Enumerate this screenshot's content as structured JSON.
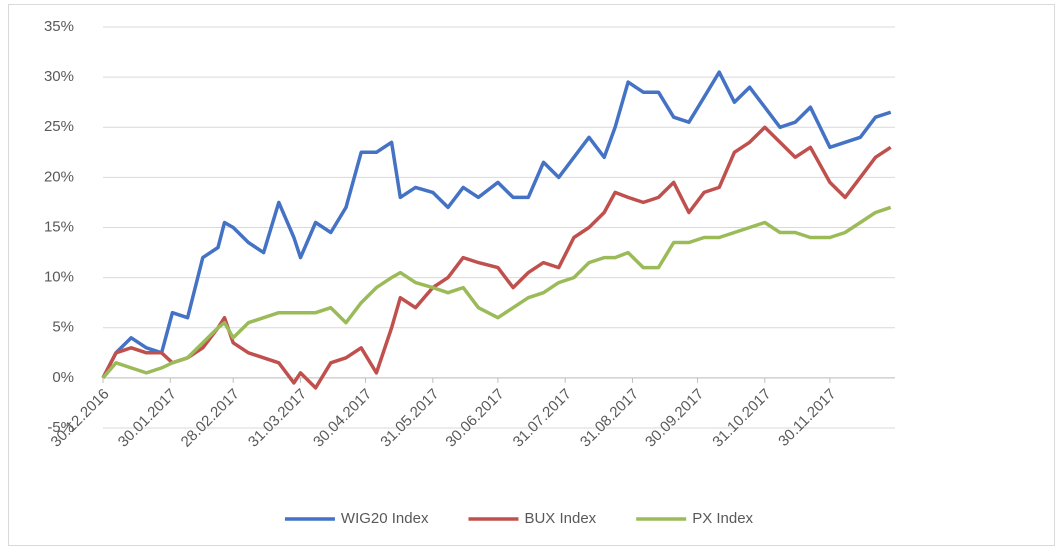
{
  "chart_data": {
    "type": "line",
    "x": [
      "30.12.2016",
      "05.01.2017",
      "12.01.2017",
      "19.01.2017",
      "26.01.2017",
      "31.01.2017",
      "07.02.2017",
      "14.02.2017",
      "21.02.2017",
      "24.02.2017",
      "28.02.2017",
      "07.03.2017",
      "14.03.2017",
      "21.03.2017",
      "28.03.2017",
      "31.03.2017",
      "07.04.2017",
      "14.04.2017",
      "21.04.2017",
      "28.04.2017",
      "05.05.2017",
      "12.05.2017",
      "16.05.2017",
      "23.05.2017",
      "31.05.2017",
      "07.06.2017",
      "14.06.2017",
      "21.06.2017",
      "30.06.2017",
      "07.07.2017",
      "14.07.2017",
      "21.07.2017",
      "28.07.2017",
      "04.08.2017",
      "11.08.2017",
      "18.08.2017",
      "23.08.2017",
      "29.08.2017",
      "05.09.2017",
      "12.09.2017",
      "19.09.2017",
      "26.09.2017",
      "03.10.2017",
      "10.10.2017",
      "17.10.2017",
      "24.10.2017",
      "31.10.2017",
      "07.11.2017",
      "14.11.2017",
      "21.11.2017",
      "30.11.2017",
      "07.12.2017",
      "14.12.2017",
      "21.12.2017",
      "28.12.2017"
    ],
    "series": [
      {
        "name": "WIG20 Index",
        "color": "#4472c4",
        "values": [
          0,
          2.5,
          4,
          3,
          2.5,
          6.5,
          6,
          12,
          13,
          15.5,
          15,
          13.5,
          12.5,
          17.5,
          14,
          12,
          15.5,
          14.5,
          17,
          22.5,
          22.5,
          23.5,
          18,
          19,
          18.5,
          17,
          19,
          18,
          19.5,
          18,
          18,
          21.5,
          20,
          22,
          24,
          22,
          25,
          29.5,
          28.5,
          28.5,
          26,
          25.5,
          28,
          30.5,
          27.5,
          29,
          27,
          25,
          25.5,
          27,
          23,
          23.5,
          24,
          26,
          26.5
        ]
      },
      {
        "name": "BUX Index",
        "color": "#c0504d",
        "values": [
          0,
          2.5,
          3,
          2.5,
          2.5,
          1.5,
          2,
          3,
          5,
          6,
          3.5,
          2.5,
          2,
          1.5,
          -0.5,
          0.5,
          -1,
          1.5,
          2,
          3,
          0.5,
          5,
          8,
          7,
          9,
          10,
          12,
          11.5,
          11,
          9,
          10.5,
          11.5,
          11,
          14,
          15,
          16.5,
          18.5,
          18,
          17.5,
          18,
          19.5,
          16.5,
          18.5,
          19,
          22.5,
          23.5,
          25,
          23.5,
          22,
          23,
          19.5,
          18,
          20,
          22,
          23
        ]
      },
      {
        "name": "PX Index",
        "color": "#9bbb59",
        "values": [
          0,
          1.5,
          1,
          0.5,
          1,
          1.5,
          2,
          3.5,
          5,
          5.5,
          4,
          5.5,
          6,
          6.5,
          6.5,
          6.5,
          6.5,
          7,
          5.5,
          7.5,
          9,
          10,
          10.5,
          9.5,
          9,
          8.5,
          9,
          7,
          6,
          7,
          8,
          8.5,
          9.5,
          10,
          11.5,
          12,
          12,
          12.5,
          11,
          11,
          13.5,
          13.5,
          14,
          14,
          14.5,
          15,
          15.5,
          14.5,
          14.5,
          14,
          14,
          14.5,
          15.5,
          16.5,
          17
        ]
      }
    ],
    "xlim": [
      "30.12.2016",
      "30.12.2017"
    ],
    "xticks": [
      "30.12.2016",
      "30.01.2017",
      "28.02.2017",
      "31.03.2017",
      "30.04.2017",
      "31.05.2017",
      "30.06.2017",
      "31.07.2017",
      "31.08.2017",
      "30.09.2017",
      "31.10.2017",
      "30.11.2017"
    ],
    "ylim": [
      -5,
      35
    ],
    "yticks": [
      {
        "value": -5,
        "label": "-5%"
      },
      {
        "value": 0,
        "label": "0%"
      },
      {
        "value": 5,
        "label": "5%"
      },
      {
        "value": 10,
        "label": "10%"
      },
      {
        "value": 15,
        "label": "15%"
      },
      {
        "value": 20,
        "label": "20%"
      },
      {
        "value": 25,
        "label": "25%"
      },
      {
        "value": 30,
        "label": "30%"
      },
      {
        "value": 35,
        "label": "35%"
      }
    ],
    "grid": true,
    "legend": "bottom"
  }
}
